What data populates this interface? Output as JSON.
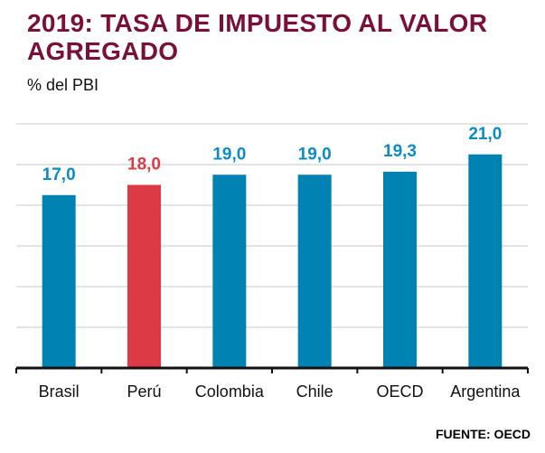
{
  "header": {
    "title": "2019: TASA DE IMPUESTO AL VALOR AGREGADO",
    "subtitle": "% del PBI"
  },
  "footer": {
    "source": "FUENTE: OECD"
  },
  "colors": {
    "title": "#7a0f3a",
    "bar_default": "#0083b3",
    "bar_highlight": "#dc3b45",
    "label_default": "#0b8cc7",
    "label_highlight": "#dc3b45",
    "grid": "#c8c8c8",
    "axis": "#111111"
  },
  "chart_data": {
    "type": "bar",
    "title": "2019: TASA DE IMPUESTO AL VALOR AGREGADO",
    "subtitle": "% del PBI",
    "categories": [
      "Brasil",
      "Perú",
      "Colombia",
      "Chile",
      "OECD",
      "Argentina"
    ],
    "values": [
      17.0,
      18.0,
      19.0,
      19.0,
      19.3,
      21.0
    ],
    "value_labels": [
      "17,0",
      "18,0",
      "19,0",
      "19,0",
      "19,3",
      "21,0"
    ],
    "highlight": [
      "Perú"
    ],
    "ylim": [
      0,
      24
    ],
    "grid": true,
    "xlabel": "",
    "ylabel": "",
    "source": "FUENTE: OECD"
  }
}
